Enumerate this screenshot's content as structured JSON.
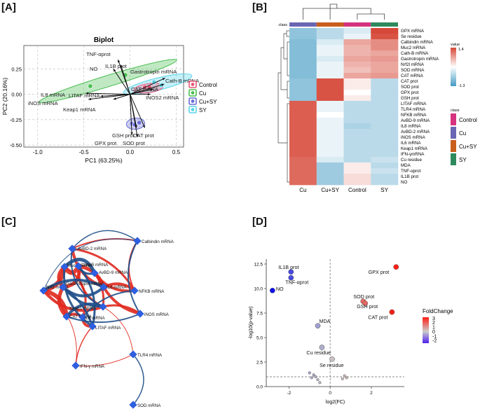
{
  "panels": {
    "A": "[A]",
    "B": "[B]",
    "C": "[C]",
    "D": "[D]"
  },
  "chart_data": [
    {
      "type": "scatter",
      "panel": "A",
      "title": "Biplot",
      "xlabel": "PC1 (63.25%)",
      "ylabel": "PC2 (20.16%)",
      "xlim": [
        -1.15,
        0.58
      ],
      "ylim": [
        -0.52,
        0.48
      ],
      "xticks": [
        -1.0,
        -0.5,
        0.0,
        0.5
      ],
      "xtick_labels": [
        "-1.0",
        "-0.5",
        "0.0",
        "0.5"
      ],
      "yticks": [
        -0.5,
        -0.25,
        0.0,
        0.25
      ],
      "ytick_labels": [
        "-0.50",
        "-0.25",
        "0.00",
        "0.25"
      ],
      "legend": [
        "Control",
        "Cu",
        "Cu+SY",
        "SY"
      ],
      "group_colors": [
        "#e8557a",
        "#4bbf52",
        "#6a6ed8",
        "#5ad4ea"
      ],
      "points": [
        {
          "group": "Cu",
          "x": -0.43,
          "y": 0.08
        },
        {
          "group": "Cu",
          "x": -0.05,
          "y": 0.19
        },
        {
          "group": "Control",
          "x": 0.16,
          "y": 0.07
        },
        {
          "group": "Control",
          "x": 0.21,
          "y": 0.07
        },
        {
          "group": "SY",
          "x": 0.26,
          "y": 0.12
        },
        {
          "group": "SY",
          "x": 0.34,
          "y": 0.09
        },
        {
          "group": "Cu+SY",
          "x": 0.02,
          "y": -0.29
        },
        {
          "group": "Cu+SY",
          "x": 0.05,
          "y": -0.3
        },
        {
          "group": "Cu+SY",
          "x": 0.1,
          "y": -0.28
        }
      ],
      "loadings": [
        {
          "label": "TNF-αprot",
          "x": -0.13,
          "y": 0.34
        },
        {
          "label": "IL1B prot",
          "x": -0.1,
          "y": 0.29
        },
        {
          "label": "NO",
          "x": -0.18,
          "y": 0.25
        },
        {
          "label": "Gastrotropin mRNA",
          "x": 0.38,
          "y": 0.16
        },
        {
          "label": "Cath-B mRNA",
          "x": 0.37,
          "y": 0.1
        },
        {
          "label": "CAT mRNA",
          "x": 0.25,
          "y": 0.05
        },
        {
          "label": "INOS2 mRNA",
          "x": 0.22,
          "y": 0.0
        },
        {
          "label": "IL8 mRNA",
          "x": -0.48,
          "y": 0.01
        },
        {
          "label": "LITAF mRNA",
          "x": -0.32,
          "y": -0.02
        },
        {
          "label": "iNOS mRNA",
          "x": -0.45,
          "y": -0.05
        },
        {
          "label": "Keap1 mRNA",
          "x": -0.18,
          "y": -0.05
        },
        {
          "label": "GSH prot",
          "x": 0.07,
          "y": -0.33
        },
        {
          "label": "CAT prot",
          "x": 0.16,
          "y": -0.33
        },
        {
          "label": "GPX prot",
          "x": 0.02,
          "y": -0.4
        },
        {
          "label": "SOD prot",
          "x": 0.08,
          "y": -0.42
        }
      ]
    },
    {
      "type": "heatmap",
      "panel": "B",
      "column_annotation_label": "class",
      "columns": [
        "Cu",
        "Cu+SY",
        "Control",
        "SY"
      ],
      "column_colors": [
        "#6a66b3",
        "#c95e1e",
        "#d6337f",
        "#2e8a5c"
      ],
      "legend_title": "class",
      "value_legend_title": "value",
      "value_range": [
        -1.3,
        1.4
      ],
      "value_range_labels": [
        "-1.3",
        "1.4"
      ],
      "rows": [
        "GPX mRNA",
        "Se residue",
        "Calbindin mRNA",
        "Muc2 mRNA",
        "Cath-B mRNA",
        "Gastrotropin mRNA",
        "Nrf2l mRNA",
        "SOD mRNA",
        "CAT mRNA",
        "CAT prot",
        "SOD prot",
        "GPX prot",
        "GSH prot",
        "LITAF mRNA",
        "TLR4 mRNA",
        "NFKB mRNA",
        "AvBD-9 mRNA",
        "IL8 mRNA",
        "AvBD-2 mRNA",
        "iNOS mRNA",
        "IL6 mRNA",
        "Keap1 mRNA",
        "IFN-γmRNA",
        "Cu residue",
        "MDA",
        "TNF-αprot",
        "IL1B prot",
        "NO"
      ],
      "values": [
        [
          -0.7,
          -0.4,
          -0.2,
          1.4
        ],
        [
          -0.7,
          -0.4,
          -0.1,
          1.3
        ],
        [
          -0.8,
          -0.2,
          0.6,
          0.8
        ],
        [
          -0.8,
          -0.1,
          0.5,
          0.8
        ],
        [
          -0.8,
          -0.1,
          0.5,
          0.6
        ],
        [
          -0.8,
          -0.2,
          0.6,
          0.7
        ],
        [
          -0.8,
          -0.1,
          0.5,
          0.6
        ],
        [
          -0.8,
          -0.1,
          0.4,
          0.6
        ],
        [
          -0.8,
          -0.1,
          0.6,
          0.7
        ],
        [
          -0.7,
          1.3,
          0.1,
          -0.4
        ],
        [
          -0.7,
          1.3,
          0.1,
          -0.4
        ],
        [
          -0.7,
          1.3,
          0.0,
          -0.4
        ],
        [
          -0.7,
          1.3,
          0.1,
          -0.4
        ],
        [
          1.2,
          -0.1,
          -0.4,
          -0.4
        ],
        [
          1.2,
          -0.1,
          -0.4,
          -0.4
        ],
        [
          1.2,
          0.0,
          -0.4,
          -0.4
        ],
        [
          1.2,
          -0.1,
          -0.4,
          -0.4
        ],
        [
          1.2,
          -0.1,
          -0.5,
          -0.4
        ],
        [
          1.2,
          -0.1,
          -0.4,
          -0.4
        ],
        [
          1.2,
          -0.1,
          -0.4,
          -0.4
        ],
        [
          1.2,
          -0.1,
          -0.4,
          -0.4
        ],
        [
          1.2,
          -0.1,
          -0.4,
          -0.4
        ],
        [
          1.2,
          -0.1,
          -0.4,
          -0.4
        ],
        [
          1.1,
          -0.2,
          -0.4,
          -0.3
        ],
        [
          1.1,
          -0.6,
          0.1,
          -0.4
        ],
        [
          1.1,
          -0.6,
          0.1,
          -0.3
        ],
        [
          1.1,
          -0.6,
          0.2,
          -0.4
        ],
        [
          1.1,
          -0.6,
          0.2,
          -0.4
        ]
      ]
    },
    {
      "type": "network",
      "panel": "C",
      "nodes": [
        "Calbindin mRNA",
        "AvBD-2 mRNA",
        "Muc2 mRNA",
        "Cath-B mRNA",
        "AvBD-9 mRNA",
        "Nrf2 mRNA",
        "Gastrotropin mRNA",
        "IL6 mRNA",
        "NFKB mRNA",
        "Keap1 mRNA",
        "iNOS mRNA",
        "CAT mRNA",
        "IL8 mRNA",
        "LITAF mRNA",
        "TLR4 mRNA",
        "IFN-γ mRNA",
        "SOD mRNA"
      ],
      "edge_colors": {
        "positive": "#e0291f",
        "negative": "#1f4f8a"
      }
    },
    {
      "type": "scatter",
      "panel": "D",
      "xlabel": "log2(FC)",
      "ylabel": "-log10(p-value)",
      "xlim": [
        -3.1,
        3.6
      ],
      "ylim": [
        0.0,
        13.0
      ],
      "xticks": [
        -2,
        0,
        2
      ],
      "xtick_labels": [
        "-2",
        "0",
        "2"
      ],
      "yticks": [
        0.0,
        2.5,
        5.0,
        7.5,
        10.0,
        12.5
      ],
      "ytick_labels": [
        "0.0",
        "2.5",
        "5.0",
        "7.5",
        "10.0",
        "12.5"
      ],
      "threshold_y": 1.0,
      "threshold_x": 0,
      "legend_title": "FoldChange",
      "legend_ticks": [
        3,
        2,
        1,
        0,
        -1,
        -2
      ],
      "legend_tick_labels": [
        "3",
        "2",
        "1",
        "0",
        "-1",
        "-2"
      ],
      "points": [
        {
          "label": "GPX prot",
          "x": 3.2,
          "y": 12.2,
          "fc": 3.2
        },
        {
          "label": "CAT prot",
          "x": 3.0,
          "y": 7.6,
          "fc": 3.0
        },
        {
          "label": "SOD prot",
          "x": 1.6,
          "y": 8.7,
          "fc": 1.6
        },
        {
          "label": "GSH prot",
          "x": 1.7,
          "y": 8.5,
          "fc": 1.7
        },
        {
          "label": "IL1B prot",
          "x": -1.9,
          "y": 11.7,
          "fc": -1.9
        },
        {
          "label": "TNF-αprot",
          "x": -1.9,
          "y": 11.1,
          "fc": -1.9
        },
        {
          "label": "NO",
          "x": -2.8,
          "y": 9.8,
          "fc": -2.8
        },
        {
          "label": "MDA",
          "x": -0.6,
          "y": 6.2,
          "fc": -0.6
        },
        {
          "label": "Cu residue",
          "x": -0.4,
          "y": 4.0,
          "fc": -0.4
        },
        {
          "label": "Se residue",
          "x": 0.1,
          "y": 2.8,
          "fc": 0.1
        },
        {
          "label": "",
          "x": -1.0,
          "y": 1.4,
          "fc": -0.5
        },
        {
          "label": "",
          "x": -0.8,
          "y": 1.2,
          "fc": -0.4
        },
        {
          "label": "",
          "x": -0.7,
          "y": 1.0,
          "fc": -0.3
        },
        {
          "label": "",
          "x": -0.9,
          "y": 0.9,
          "fc": -0.3
        },
        {
          "label": "",
          "x": -0.6,
          "y": 0.7,
          "fc": -0.2
        },
        {
          "label": "",
          "x": -0.5,
          "y": 0.4,
          "fc": -0.2
        },
        {
          "label": "",
          "x": 0.7,
          "y": 1.1,
          "fc": 0.3
        },
        {
          "label": "",
          "x": 0.8,
          "y": 0.9,
          "fc": 0.3
        },
        {
          "label": "",
          "x": 0.6,
          "y": 0.8,
          "fc": 0.2
        }
      ]
    }
  ]
}
